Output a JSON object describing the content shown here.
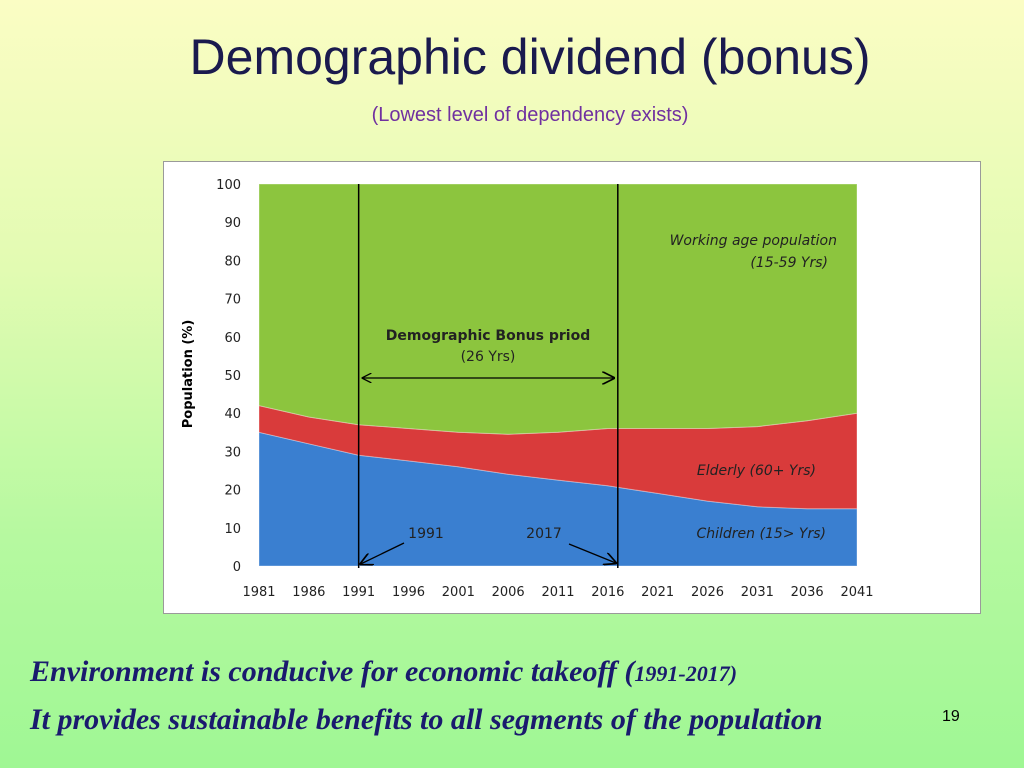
{
  "slide": {
    "title": "Demographic dividend (bonus)",
    "subtitle": "(Lowest level of dependency exists)",
    "footer_line1_main": "Environment is conducive for economic takeoff (",
    "footer_line1_years": "1991-2017)",
    "footer_line2": "It provides sustainable benefits to all segments of the population",
    "page_number": "19"
  },
  "chart_data": {
    "type": "area",
    "ylabel": "Population (%)",
    "xlabel": "",
    "ylim": [
      0,
      100
    ],
    "yticks": [
      0,
      10,
      20,
      30,
      40,
      50,
      60,
      70,
      80,
      90,
      100
    ],
    "categories": [
      "1981",
      "1986",
      "1991",
      "1996",
      "2001",
      "2006",
      "2011",
      "2016",
      "2021",
      "2026",
      "2031",
      "2036",
      "2041"
    ],
    "series": [
      {
        "name": "Children (15> Yrs)",
        "color": "#3a7fd0",
        "values": [
          35,
          32,
          29,
          27.5,
          26,
          24,
          22.5,
          21,
          19,
          17,
          15.5,
          15,
          15
        ]
      },
      {
        "name": "Elderly  (60+ Yrs)",
        "color": "#d93b3b",
        "values": [
          7,
          7,
          8,
          8.5,
          9,
          10.5,
          12.5,
          15,
          17,
          19,
          21,
          23,
          25
        ]
      },
      {
        "name": "Working age population (15-59 Yrs)",
        "color": "#8cc53e",
        "values": [
          58,
          61,
          63,
          64,
          65,
          65.5,
          65,
          64,
          64,
          64,
          63.5,
          62,
          60
        ]
      }
    ],
    "stacked": true,
    "grid": false,
    "annotations": {
      "working_label_1": "Working age population",
      "working_label_2": "(15-59 Yrs)",
      "elderly_label": "Elderly  (60+ Yrs)",
      "children_label": "Children (15> Yrs)",
      "bonus_label_1": "Demographic Bonus priod",
      "bonus_label_2": "(26 Yrs)",
      "marker_start_label": "1991",
      "marker_end_label": "2017",
      "marker_start_year": 1991,
      "marker_end_year": 2017
    }
  }
}
